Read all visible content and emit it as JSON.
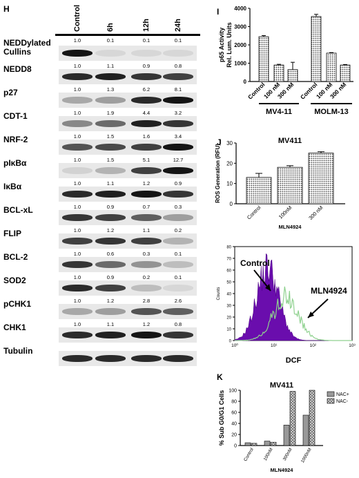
{
  "panel_h": {
    "letter": "H",
    "columns": [
      "Control",
      "6h",
      "12h",
      "24h"
    ],
    "rows": [
      {
        "label": "NEDDylated Cullins",
        "values": [
          "1.0",
          "0.1",
          "0.1",
          "0.1"
        ],
        "bands": [
          1.0,
          0.08,
          0.08,
          0.08
        ]
      },
      {
        "label": "NEDD8",
        "values": [
          "1.0",
          "1.1",
          "0.9",
          "0.8"
        ],
        "bands": [
          0.9,
          0.95,
          0.85,
          0.8
        ]
      },
      {
        "label": "p27",
        "values": [
          "1.0",
          "1.3",
          "6.2",
          "8.1"
        ],
        "bands": [
          0.3,
          0.35,
          0.9,
          1.0
        ]
      },
      {
        "label": "CDT-1",
        "values": [
          "1.0",
          "1.9",
          "4.4",
          "3.2"
        ],
        "bands": [
          0.45,
          0.6,
          0.95,
          0.85
        ]
      },
      {
        "label": "NRF-2",
        "values": [
          "1.0",
          "1.5",
          "1.6",
          "3.4"
        ],
        "bands": [
          0.7,
          0.75,
          0.8,
          1.0
        ]
      },
      {
        "label": "pIκBα",
        "values": [
          "1.0",
          "1.5",
          "5.1",
          "12.7"
        ],
        "bands": [
          0.1,
          0.25,
          0.8,
          1.0
        ]
      },
      {
        "label": "IκBα",
        "values": [
          "1.0",
          "1.1",
          "1.2",
          "0.9"
        ],
        "bands": [
          0.9,
          0.95,
          1.0,
          0.85
        ]
      },
      {
        "label": "BCL-xL",
        "values": [
          "1.0",
          "0.9",
          "0.7",
          "0.3"
        ],
        "bands": [
          0.85,
          0.8,
          0.65,
          0.35
        ]
      },
      {
        "label": "FLIP",
        "values": [
          "1.0",
          "1.2",
          "1.1",
          "0.2"
        ],
        "bands": [
          0.8,
          0.85,
          0.8,
          0.25
        ]
      },
      {
        "label": "BCL-2",
        "values": [
          "1.0",
          "0.6",
          "0.3",
          "0.1"
        ],
        "bands": [
          0.85,
          0.6,
          0.4,
          0.2
        ]
      },
      {
        "label": "SOD2",
        "values": [
          "1.0",
          "0.9",
          "0.2",
          "0.1"
        ],
        "bands": [
          0.9,
          0.8,
          0.2,
          0.08
        ]
      },
      {
        "label": "pCHK1",
        "values": [
          "1.0",
          "1.2",
          "2.8",
          "2.6"
        ],
        "bands": [
          0.3,
          0.35,
          0.7,
          0.65
        ]
      },
      {
        "label": "CHK1",
        "values": [
          "1.0",
          "1.1",
          "1.2",
          "0.8"
        ],
        "bands": [
          0.9,
          0.95,
          1.0,
          0.85
        ]
      },
      {
        "label": "Tubulin",
        "values": [],
        "bands": [
          0.9,
          0.9,
          0.9,
          0.9
        ]
      }
    ]
  },
  "panel_i": {
    "letter": "I",
    "group1": "MV4-11",
    "group2": "MOLM-13"
  },
  "panel_j": {
    "letter": "J",
    "flow_label_control": "Control",
    "flow_label_drug": "MLN4924",
    "flow_xlabel": "DCF",
    "flow_ylabel": "Counts"
  },
  "panel_k": {
    "letter": "K"
  },
  "chart_data": [
    {
      "type": "bar",
      "title": "",
      "ylabel": "p65 Activity Rel. Lum. Units",
      "ylim": [
        0,
        4000
      ],
      "yticks": [
        "0",
        "1000",
        "2000",
        "3000",
        "4000"
      ],
      "categories": [
        "Control",
        "100 nM",
        "300 nM",
        "Control",
        "100 nM",
        "300 nM"
      ],
      "values": [
        2450,
        900,
        650,
        3550,
        1550,
        900
      ],
      "errors": [
        60,
        40,
        400,
        120,
        30,
        30
      ]
    },
    {
      "type": "bar",
      "title": "MV411",
      "xlabel": "MLN4924",
      "ylabel": "ROS Generation (RFU)",
      "ylim": [
        0,
        30
      ],
      "yticks": [
        "0",
        "10",
        "20",
        "30"
      ],
      "categories": [
        "Control",
        "100nM",
        "300 nM"
      ],
      "values": [
        13,
        18,
        25
      ],
      "errors": [
        2,
        0.8,
        0.7
      ]
    },
    {
      "type": "area",
      "xlabel": "DCF",
      "ylabel": "Counts",
      "xscale": "log",
      "xlim": [
        1,
        1000
      ],
      "xticks": [
        "10⁰",
        "10¹",
        "10²",
        "10³"
      ],
      "ylim": [
        0,
        80
      ],
      "yticks": [
        "0",
        "10",
        "20",
        "30",
        "40",
        "50",
        "60",
        "70",
        "80"
      ],
      "series": [
        {
          "name": "Control",
          "color": "#6a0dad",
          "peak_x": 7,
          "peak_y": 78
        },
        {
          "name": "MLN4924",
          "color": "#2ca02c",
          "peak_x": 20,
          "peak_y": 40
        }
      ]
    },
    {
      "type": "bar",
      "title": "MV411",
      "xlabel": "MLN4924",
      "ylabel": "% Sub G0/G1 Cells",
      "ylim": [
        0,
        100
      ],
      "yticks": [
        "0",
        "20",
        "40",
        "60",
        "80",
        "100"
      ],
      "categories": [
        "Control",
        "100nM",
        "300nM",
        "1000nM"
      ],
      "series": [
        {
          "name": "NAC+",
          "values": [
            5,
            8,
            37,
            55
          ]
        },
        {
          "name": "NAC-",
          "values": [
            4,
            6,
            98,
            100
          ]
        }
      ]
    }
  ]
}
